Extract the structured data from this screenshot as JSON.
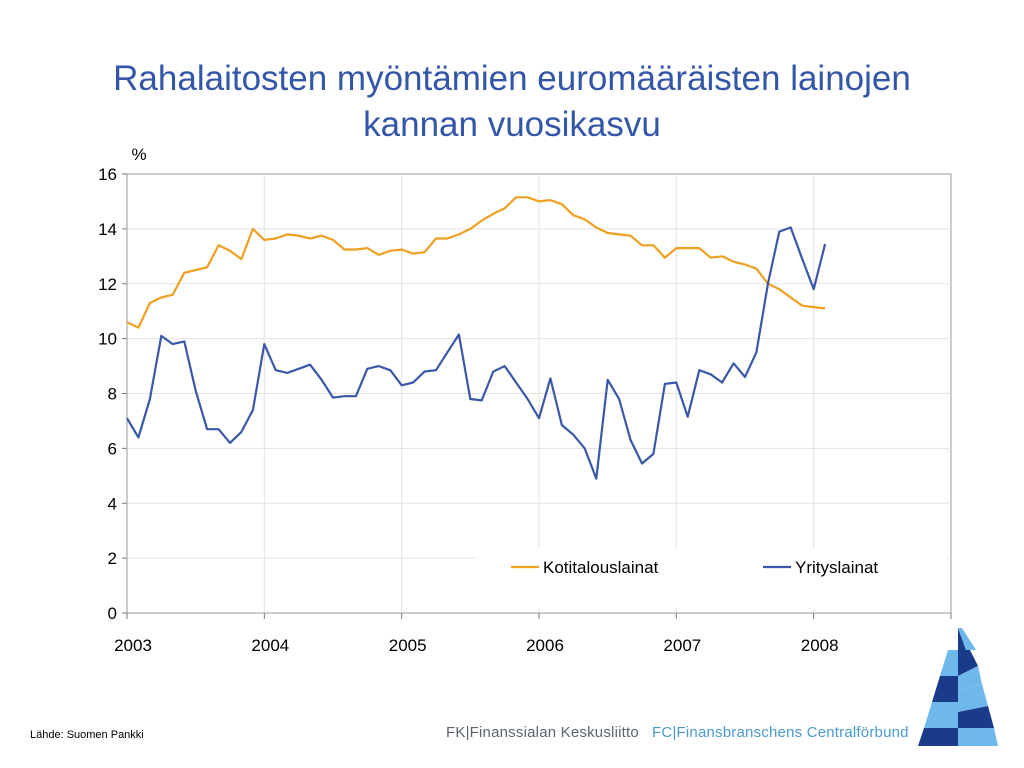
{
  "slide": {
    "title_line1": "Rahalaitosten myöntämien euromääräisten lainojen",
    "title_line2": "kannan vuosikasvu",
    "source": "Lähde: Suomen Pankki",
    "footer_left": "FK|Finanssialan Keskusliitto",
    "footer_right": "FC|Finansbranschens Centralförbund"
  },
  "colors": {
    "title": "#3356a8",
    "series_household": "#f0a020",
    "series_corporate": "#3a58a8",
    "logo_dark": "#1a3a8a",
    "logo_light": "#6fb8ec"
  },
  "chart_data": {
    "type": "line",
    "ylabel": "%",
    "ylim": [
      0,
      16
    ],
    "yticks": [
      "0",
      "2",
      "4",
      "6",
      "8",
      "10",
      "12",
      "14",
      "16"
    ],
    "xlim": [
      2003,
      2009
    ],
    "xticks": [
      "2003",
      "2004",
      "2005",
      "2006",
      "2007",
      "2008"
    ],
    "grid": true,
    "legend": "bottom-right",
    "series": [
      {
        "name": "Kotitalouslainat",
        "color": "#f0a020",
        "x": [
          2003.0,
          2003.083,
          2003.167,
          2003.25,
          2003.333,
          2003.417,
          2003.5,
          2003.583,
          2003.667,
          2003.75,
          2003.833,
          2003.917,
          2004.0,
          2004.083,
          2004.167,
          2004.25,
          2004.333,
          2004.417,
          2004.5,
          2004.583,
          2004.667,
          2004.75,
          2004.833,
          2004.917,
          2005.0,
          2005.083,
          2005.167,
          2005.25,
          2005.333,
          2005.417,
          2005.5,
          2005.583,
          2005.667,
          2005.75,
          2005.833,
          2005.917,
          2006.0,
          2006.083,
          2006.167,
          2006.25,
          2006.333,
          2006.417,
          2006.5,
          2006.583,
          2006.667,
          2006.75,
          2006.833,
          2006.917,
          2007.0,
          2007.083,
          2007.167,
          2007.25,
          2007.333,
          2007.417,
          2007.5,
          2007.583,
          2007.667,
          2007.75,
          2007.833,
          2007.917,
          2008.0,
          2008.083
        ],
        "values": [
          10.6,
          10.4,
          11.3,
          11.5,
          11.6,
          12.4,
          12.5,
          12.6,
          13.4,
          13.2,
          12.9,
          14.0,
          13.6,
          13.65,
          13.8,
          13.75,
          13.65,
          13.75,
          13.6,
          13.25,
          13.25,
          13.3,
          13.05,
          13.2,
          13.25,
          13.1,
          13.15,
          13.65,
          13.65,
          13.8,
          14.0,
          14.3,
          14.55,
          14.75,
          15.15,
          15.15,
          15.0,
          15.05,
          14.9,
          14.5,
          14.35,
          14.05,
          13.85,
          13.8,
          13.75,
          13.4,
          13.4,
          12.95,
          13.3,
          13.3,
          13.3,
          12.95,
          13.0,
          12.8,
          12.7,
          12.55,
          12.0,
          11.8,
          11.5,
          11.2,
          11.15,
          11.1
        ]
      },
      {
        "name": "Yrityslainat",
        "color": "#3a58a8",
        "x": [
          2003.0,
          2003.083,
          2003.167,
          2003.25,
          2003.333,
          2003.417,
          2003.5,
          2003.583,
          2003.667,
          2003.75,
          2003.833,
          2003.917,
          2004.0,
          2004.083,
          2004.167,
          2004.25,
          2004.333,
          2004.417,
          2004.5,
          2004.583,
          2004.667,
          2004.75,
          2004.833,
          2004.917,
          2005.0,
          2005.083,
          2005.167,
          2005.25,
          2005.333,
          2005.417,
          2005.5,
          2005.583,
          2005.667,
          2005.75,
          2005.833,
          2005.917,
          2006.0,
          2006.083,
          2006.167,
          2006.25,
          2006.333,
          2006.417,
          2006.5,
          2006.583,
          2006.667,
          2006.75,
          2006.833,
          2006.917,
          2007.0,
          2007.083,
          2007.167,
          2007.25,
          2007.333,
          2007.417,
          2007.5,
          2007.583,
          2007.667,
          2007.75,
          2007.833,
          2007.917,
          2008.0,
          2008.083
        ],
        "values": [
          7.1,
          6.4,
          7.8,
          10.1,
          9.8,
          9.9,
          8.1,
          6.7,
          6.7,
          6.2,
          6.6,
          7.4,
          9.8,
          8.85,
          8.75,
          8.9,
          9.05,
          8.5,
          7.85,
          7.9,
          7.9,
          8.9,
          9.0,
          8.85,
          8.3,
          8.4,
          8.8,
          8.85,
          9.5,
          10.15,
          7.8,
          7.75,
          8.8,
          9.0,
          8.4,
          7.8,
          7.1,
          8.55,
          6.85,
          6.5,
          6.0,
          4.9,
          8.5,
          7.8,
          6.3,
          5.45,
          5.8,
          8.35,
          8.4,
          7.15,
          8.85,
          8.7,
          8.4,
          9.1,
          8.6,
          9.5,
          12.0,
          13.9,
          14.05,
          12.9,
          11.8,
          13.45
        ]
      }
    ]
  }
}
